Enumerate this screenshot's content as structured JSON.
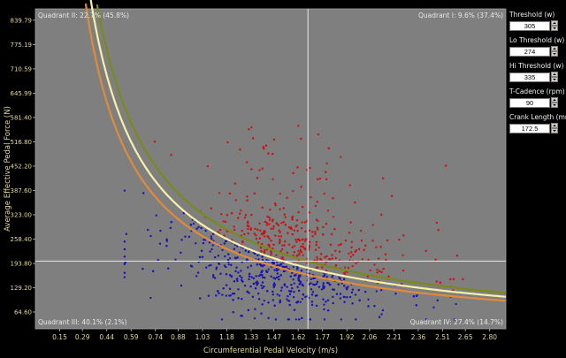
{
  "colors": {
    "plot_bg": "#7f7f7f",
    "below": "#1a14b4",
    "above": "#c81414",
    "threshold_curve": "#f6f0a8",
    "lo_curve": "#e08a3a",
    "hi_curve": "#7a8a1a",
    "text": "#d8d8c0"
  },
  "controls": [
    {
      "label": "Threshold (w)",
      "value": "305"
    },
    {
      "label": "Lo Threshold (w)",
      "value": "274"
    },
    {
      "label": "Hi Threshold (w)",
      "value": "335"
    },
    {
      "label": "T-Cadence (rpm)",
      "value": "90"
    },
    {
      "label": "Crank Length (mm)",
      "value": "172.5"
    }
  ],
  "chart_data": {
    "type": "scatter",
    "xlabel": "Circumferential Pedal Velocity (m/s)",
    "ylabel": "Average Effective Pedal Force (N)",
    "xlim": [
      0.0,
      2.9
    ],
    "ylim": [
      20,
      870
    ],
    "xticks": [
      "0.15",
      "0.29",
      "0.44",
      "0.59",
      "0.74",
      "0.88",
      "1.03",
      "1.18",
      "1.33",
      "1.47",
      "1.62",
      "1.77",
      "1.92",
      "2.06",
      "2.21",
      "2.36",
      "2.51",
      "2.65",
      "2.80"
    ],
    "yticks": [
      "64.60",
      "129.20",
      "193.80",
      "258.40",
      "323.00",
      "387.60",
      "452.20",
      "516.80",
      "581.40",
      "645.99",
      "710.59",
      "775.19",
      "839.79"
    ],
    "quadrant_labels": {
      "q1": "Quadrant I: 9.6% (37.4%)",
      "q2": "Quadrant II: 22.7% (45.8%)",
      "q3": "Quadrant III: 40.1% (2.1%)",
      "q4": "Quadrant IV: 27.4% (14.7%)"
    },
    "reference_lines": {
      "x": 1.68,
      "y": 200
    },
    "curves": [
      {
        "name": "Threshold",
        "watts": 305,
        "color": "#f6f0a8"
      },
      {
        "name": "Lo Threshold",
        "watts": 274,
        "color": "#e08a3a"
      },
      {
        "name": "Hi Threshold",
        "watts": 335,
        "color": "#7a8a1a"
      }
    ],
    "grid": false,
    "point_count": 1600
  }
}
